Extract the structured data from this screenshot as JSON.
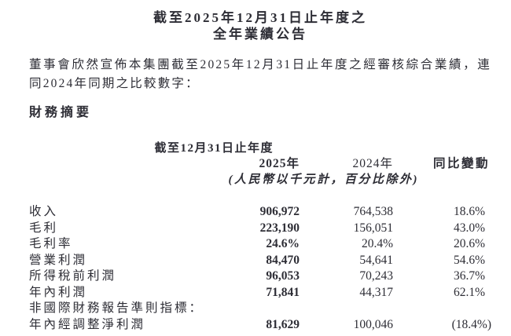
{
  "document": {
    "title_line1": "截至2025年12月31日止年度之",
    "title_line2": "全年業績公告",
    "intro": "董事會欣然宣佈本集團截至2025年12月31日止年度之經審核綜合業績，連同2024年同期之比較數字："
  },
  "summary": {
    "heading": "財務摘要",
    "table": {
      "period_header": "截至12月31日止年度",
      "col_2025": "2025年",
      "col_2024": "2024年",
      "col_change": "同比變動",
      "unit_note": "(人民幣以千元計，百分比除外)",
      "rows": [
        {
          "label": "收入",
          "v2025": "906,972",
          "v2024": "764,538",
          "change": "18.6%"
        },
        {
          "label": "毛利",
          "v2025": "223,190",
          "v2024": "156,051",
          "change": "43.0%"
        },
        {
          "label": "毛利率",
          "v2025": "24.6%",
          "v2024": "20.4%",
          "change": "20.6%"
        },
        {
          "label": "營業利潤",
          "v2025": "84,470",
          "v2024": "54,641",
          "change": "54.6%"
        },
        {
          "label": "所得稅前利潤",
          "v2025": "96,053",
          "v2024": "70,243",
          "change": "36.7%"
        },
        {
          "label": "年內利潤",
          "v2025": "71,841",
          "v2024": "44,317",
          "change": "62.1%"
        },
        {
          "label": "非國際財務報告準則指標：",
          "v2025": "",
          "v2024": "",
          "change": ""
        },
        {
          "label": "年內經調整淨利潤",
          "v2025": "81,629",
          "v2024": "100,046",
          "change": "(18.4%)"
        }
      ]
    }
  }
}
